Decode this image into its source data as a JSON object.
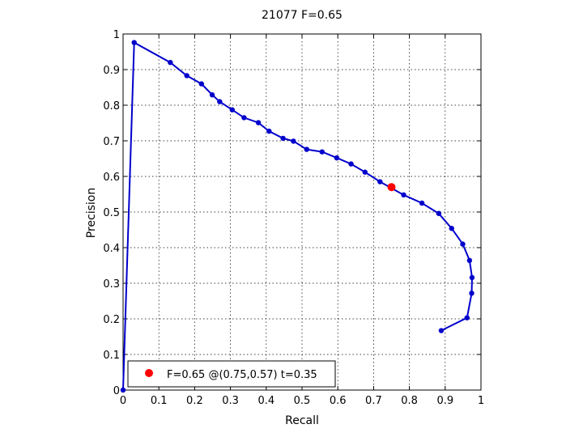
{
  "chart_data": {
    "type": "line",
    "title": "21077 F=0.65",
    "xlabel": "Recall",
    "ylabel": "Precision",
    "xlim": [
      0,
      1
    ],
    "ylim": [
      0,
      1
    ],
    "xticks": [
      0,
      0.1,
      0.2,
      0.3,
      0.4,
      0.5,
      0.6,
      0.7,
      0.8,
      0.9,
      1
    ],
    "yticks": [
      0,
      0.1,
      0.2,
      0.3,
      0.4,
      0.5,
      0.6,
      0.7,
      0.8,
      0.9,
      1
    ],
    "xtick_labels": [
      "0",
      "0.1",
      "0.2",
      "0.3",
      "0.4",
      "0.5",
      "0.6",
      "0.7",
      "0.8",
      "0.9",
      "1"
    ],
    "ytick_labels": [
      "0",
      "0.1",
      "0.2",
      "0.3",
      "0.4",
      "0.5",
      "0.6",
      "0.7",
      "0.8",
      "0.9",
      "1"
    ],
    "grid": true,
    "legend_position": "bottom-left",
    "line_color": "#0000cc",
    "marker_color": "#0000cc",
    "highlight_color": "#ff0000",
    "series": [
      {
        "x": [
          0.0,
          0.031,
          0.132,
          0.178,
          0.219,
          0.249,
          0.27,
          0.305,
          0.338,
          0.378,
          0.408,
          0.447,
          0.476,
          0.513,
          0.556,
          0.597,
          0.637,
          0.676,
          0.718,
          0.784,
          0.835,
          0.882,
          0.918,
          0.949,
          0.968,
          0.975,
          0.974,
          0.961,
          0.889
        ],
        "y": [
          0.0,
          0.976,
          0.92,
          0.883,
          0.86,
          0.829,
          0.81,
          0.787,
          0.765,
          0.751,
          0.727,
          0.707,
          0.699,
          0.676,
          0.669,
          0.652,
          0.635,
          0.612,
          0.585,
          0.548,
          0.525,
          0.496,
          0.454,
          0.41,
          0.364,
          0.316,
          0.272,
          0.203,
          0.167
        ]
      }
    ],
    "highlight_point": {
      "x": 0.75,
      "y": 0.57
    },
    "legend": {
      "label": "F=0.65 @(0.75,0.57) t=0.35"
    }
  }
}
